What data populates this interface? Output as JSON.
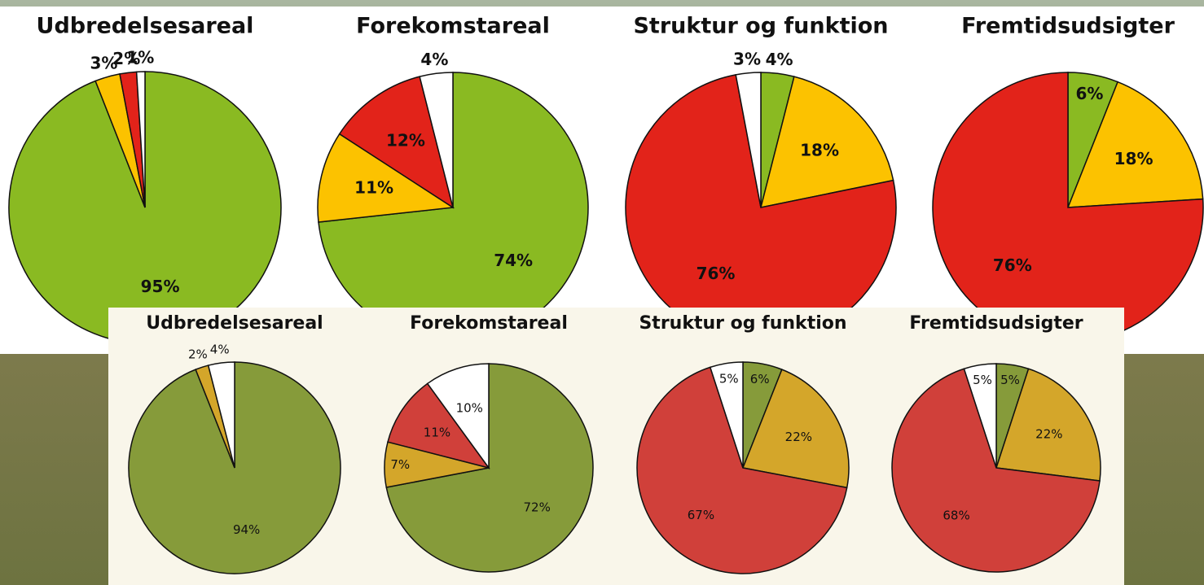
{
  "chart_data": [
    {
      "type": "pie",
      "title": "Udbredelsesareal",
      "values": [
        95,
        3,
        2,
        1
      ],
      "value_labels": [
        "95%",
        "3%",
        "2%",
        "1%"
      ],
      "colors": [
        "#8aba22",
        "#fcc200",
        "#e2231a",
        "#ffffff"
      ]
    },
    {
      "type": "pie",
      "title": "Forekomstareal",
      "values": [
        74,
        11,
        12,
        4
      ],
      "value_labels": [
        "74%",
        "11%",
        "12%",
        "4%"
      ],
      "colors": [
        "#8aba22",
        "#fcc200",
        "#e2231a",
        "#ffffff"
      ]
    },
    {
      "type": "pie",
      "title": "Struktur og funktion",
      "values": [
        4,
        18,
        76,
        3
      ],
      "value_labels": [
        "4%",
        "18%",
        "76%",
        "3%"
      ],
      "colors": [
        "#8aba22",
        "#fcc200",
        "#e2231a",
        "#ffffff"
      ]
    },
    {
      "type": "pie",
      "title": "Fremtidsudsigter",
      "values": [
        6,
        18,
        76
      ],
      "value_labels": [
        "6%",
        "18%",
        "76%"
      ],
      "colors": [
        "#8aba22",
        "#fcc200",
        "#e2231a"
      ]
    },
    {
      "type": "pie",
      "title": "Udbredelsesareal",
      "values": [
        94,
        2,
        4
      ],
      "value_labels": [
        "94%",
        "2%",
        "4%"
      ],
      "colors": [
        "#869b3a",
        "#d4a62a",
        "#ffffff"
      ]
    },
    {
      "type": "pie",
      "title": "Forekomstareal",
      "values": [
        72,
        7,
        11,
        10
      ],
      "value_labels": [
        "72%",
        "7%",
        "11%",
        "10%"
      ],
      "colors": [
        "#869b3a",
        "#d4a62a",
        "#d0403a",
        "#ffffff"
      ]
    },
    {
      "type": "pie",
      "title": "Struktur og funktion",
      "values": [
        6,
        22,
        67,
        5
      ],
      "value_labels": [
        "6%",
        "22%",
        "67%",
        "5%"
      ],
      "colors": [
        "#869b3a",
        "#d4a62a",
        "#d0403a",
        "#ffffff"
      ]
    },
    {
      "type": "pie",
      "title": "Fremtidsudsigter",
      "values": [
        5,
        22,
        68,
        5
      ],
      "value_labels": [
        "5%",
        "22%",
        "68%",
        "5%"
      ],
      "colors": [
        "#869b3a",
        "#d4a62a",
        "#d0403a",
        "#ffffff"
      ]
    }
  ]
}
